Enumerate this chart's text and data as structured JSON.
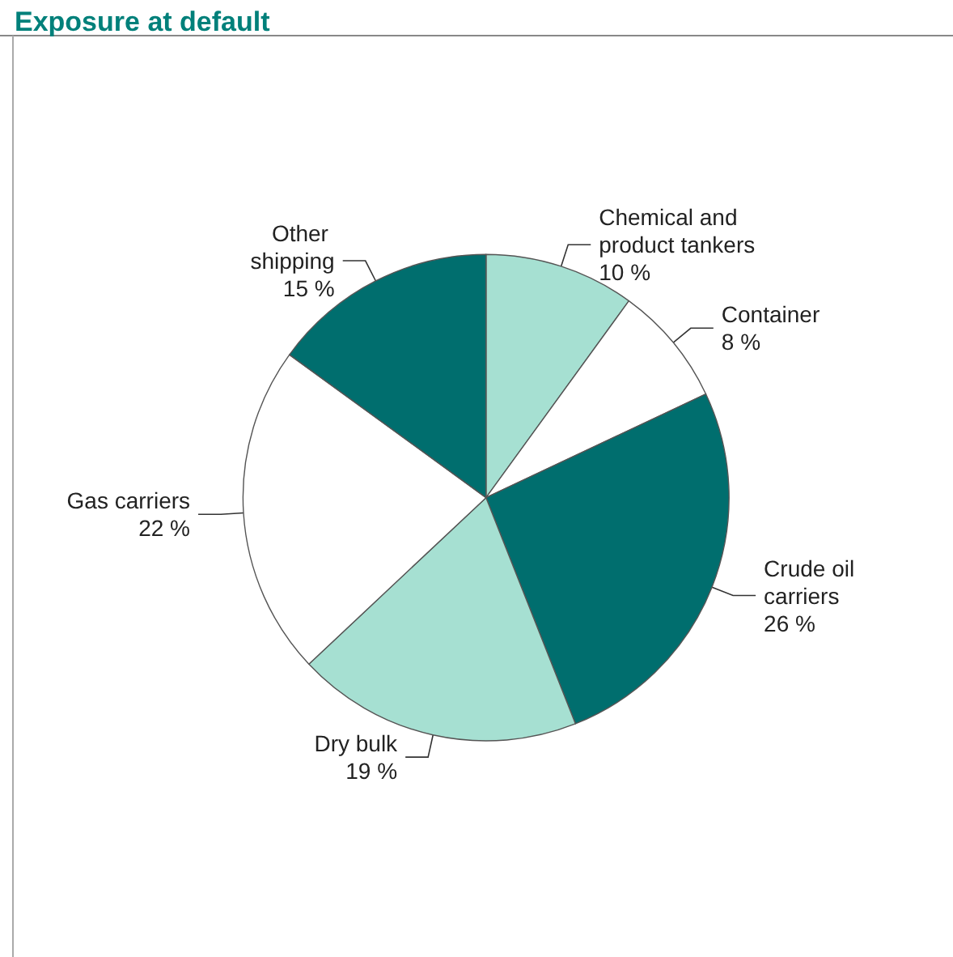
{
  "chart_data": {
    "type": "pie",
    "title": "Exposure at default",
    "categories": [
      "Chemical and product tankers",
      "Container",
      "Crude oil carriers",
      "Dry bulk",
      "Gas carriers",
      "Other shipping"
    ],
    "values": [
      10,
      8,
      26,
      19,
      22,
      15
    ],
    "colors": [
      "#a6e0d2",
      "#ffffff",
      "#006e6e",
      "#a6e0d2",
      "#ffffff",
      "#006e6e"
    ],
    "value_labels": [
      "10 %",
      "8 %",
      "26 %",
      "19 %",
      "22 %",
      "15 %"
    ],
    "legend": false
  }
}
